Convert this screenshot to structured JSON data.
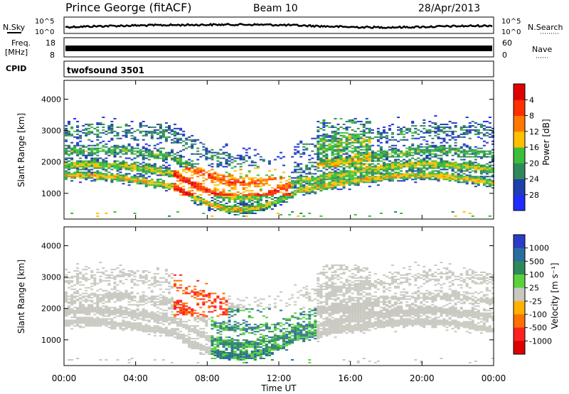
{
  "header": {
    "station": "Prince George (fitACF)",
    "beam": "Beam 10",
    "date": "28/Apr/2013"
  },
  "noise_panel": {
    "left_label": "N.Sky",
    "right_label": "N.Search",
    "tick_top": "10^5",
    "tick_bottom": "10^0",
    "right_tick_top": "10^5",
    "right_tick_bottom": "10^0"
  },
  "freq_panel": {
    "left_label_1": "Freq.",
    "left_label_2": "[MHz]",
    "left_tick_top": "18",
    "left_tick_bottom": "8",
    "right_label": "Nave",
    "right_tick_top": "60",
    "right_tick_bottom": "0"
  },
  "cpid": {
    "label": "CPID",
    "value": "twofsound 3501"
  },
  "chart_data": [
    {
      "type": "heatmap",
      "title": "",
      "ylabel": "Slant Range [km]",
      "y_ticks": [
        "1000",
        "2000",
        "3000",
        "4000"
      ],
      "ylim": [
        180,
        4600
      ],
      "xlim_hours": [
        0,
        24
      ],
      "colorbar": {
        "label": "Power [dB]",
        "ticks": [
          "4",
          "8",
          "12",
          "16",
          "20",
          "24",
          "28"
        ],
        "colors": [
          "#1f2cff",
          "#1e3fae",
          "#2e8a5a",
          "#3bbf3b",
          "#ffc000",
          "#ff7800",
          "#ff3000",
          "#e00000"
        ]
      }
    },
    {
      "type": "heatmap",
      "title": "",
      "ylabel": "Slant Range [km]",
      "y_ticks": [
        "1000",
        "2000",
        "3000",
        "4000"
      ],
      "ylim": [
        180,
        4600
      ],
      "xlim_hours": [
        0,
        24
      ],
      "colorbar": {
        "label": "Velocity [m s⁻¹]",
        "ticks": [
          "1000",
          "500",
          "100",
          "25",
          "-25",
          "-100",
          "-500",
          "-1000"
        ],
        "colors": [
          "#2a3cc6",
          "#2a6ea0",
          "#2e8a5a",
          "#5ad23c",
          "#c8c8c0",
          "#ffb000",
          "#ff7000",
          "#ff2020",
          "#dd0000"
        ]
      }
    }
  ],
  "x_axis": {
    "ticks": [
      "00:00",
      "04:00",
      "08:00",
      "12:00",
      "16:00",
      "20:00",
      "00:00"
    ],
    "label": "Time UT"
  }
}
